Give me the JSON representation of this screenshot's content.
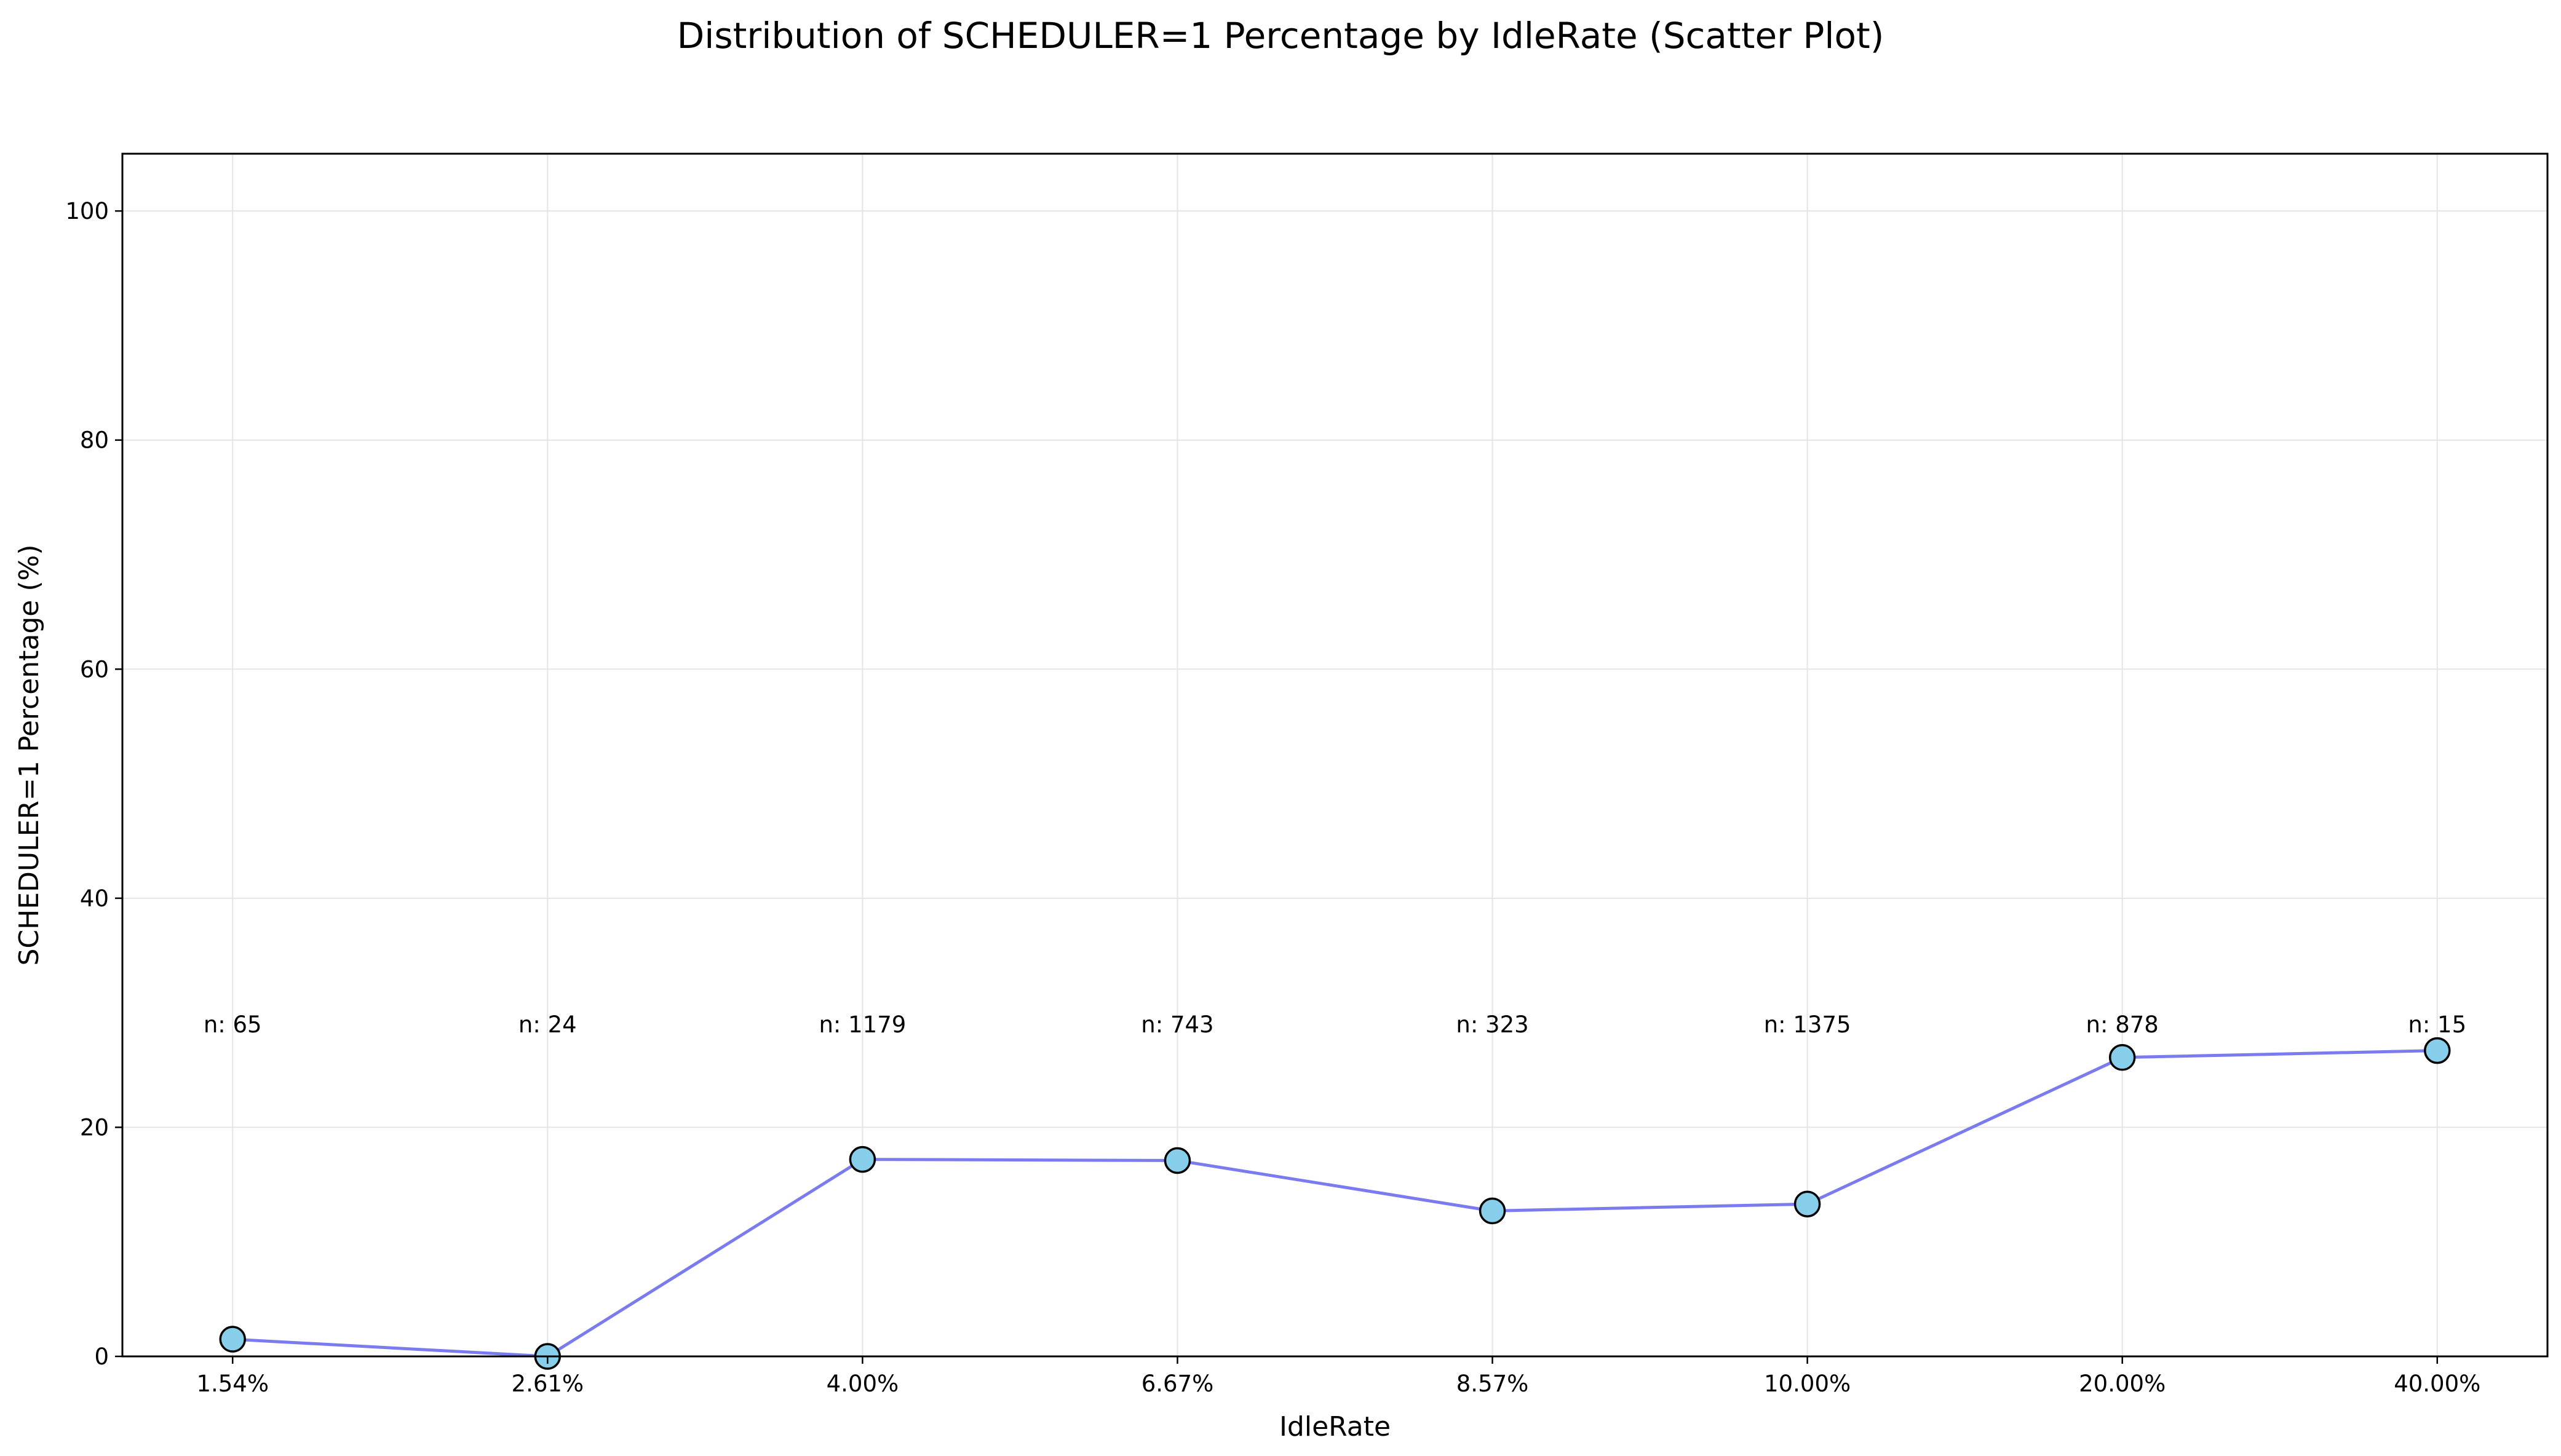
{
  "chart_data": {
    "type": "scatter",
    "title": "Distribution of SCHEDULER=1 Percentage by IdleRate (Scatter Plot)",
    "xlabel": "IdleRate",
    "ylabel": "SCHEDULER=1 Percentage (%)",
    "categories": [
      "1.54%",
      "2.61%",
      "4.00%",
      "6.67%",
      "8.57%",
      "10.00%",
      "20.00%",
      "40.00%"
    ],
    "values": [
      1.5,
      0.0,
      17.2,
      17.1,
      12.7,
      13.3,
      26.1,
      26.7
    ],
    "counts": [
      "n: 65",
      "n: 24",
      "n: 1179",
      "n: 743",
      "n: 323",
      "n: 1375",
      "n: 878",
      "n: 15"
    ],
    "count_label_y": 29,
    "ylim": [
      0,
      105
    ],
    "yticks": [
      0,
      20,
      40,
      60,
      80,
      100
    ],
    "grid": true,
    "legend": "none",
    "colors": {
      "line": "#7b7bf0",
      "marker_fill": "#87ceeb",
      "marker_edge": "#000000",
      "grid": "#e5e5e5"
    }
  }
}
